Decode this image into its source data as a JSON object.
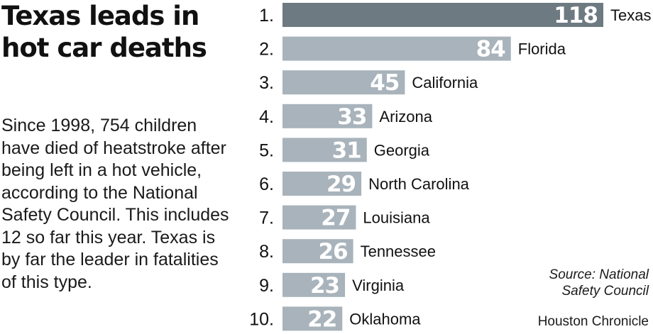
{
  "headline": "Texas leads in hot car deaths",
  "intro": "Since 1998, 754 children have died of heatstroke after being left in a hot vehicle, according to the National Safety Council. This includes 12 so far this year. Texas is by far the leader in fatalities of this type.",
  "source": "Source: National\nSafety Council",
  "credit": "Houston Chronicle",
  "colors": {
    "highlight_bar": "#6d7a82",
    "bar": "#a8b3bb",
    "bar_text": "#ffffff",
    "label_text": "#111111"
  },
  "chart_data": {
    "type": "bar",
    "orientation": "horizontal",
    "title": "Texas leads in hot car deaths",
    "xlabel": "",
    "ylabel": "",
    "xlim": [
      0,
      118
    ],
    "grid": false,
    "ranks": [
      "1.",
      "2.",
      "3.",
      "4.",
      "5.",
      "6.",
      "7.",
      "8.",
      "9.",
      "10."
    ],
    "categories": [
      "Texas",
      "Florida",
      "California",
      "Arizona",
      "Georgia",
      "North Carolina",
      "Louisiana",
      "Tennessee",
      "Virginia",
      "Oklahoma"
    ],
    "values": [
      118,
      84,
      45,
      33,
      31,
      29,
      27,
      26,
      23,
      22
    ],
    "highlighted": "Texas"
  }
}
